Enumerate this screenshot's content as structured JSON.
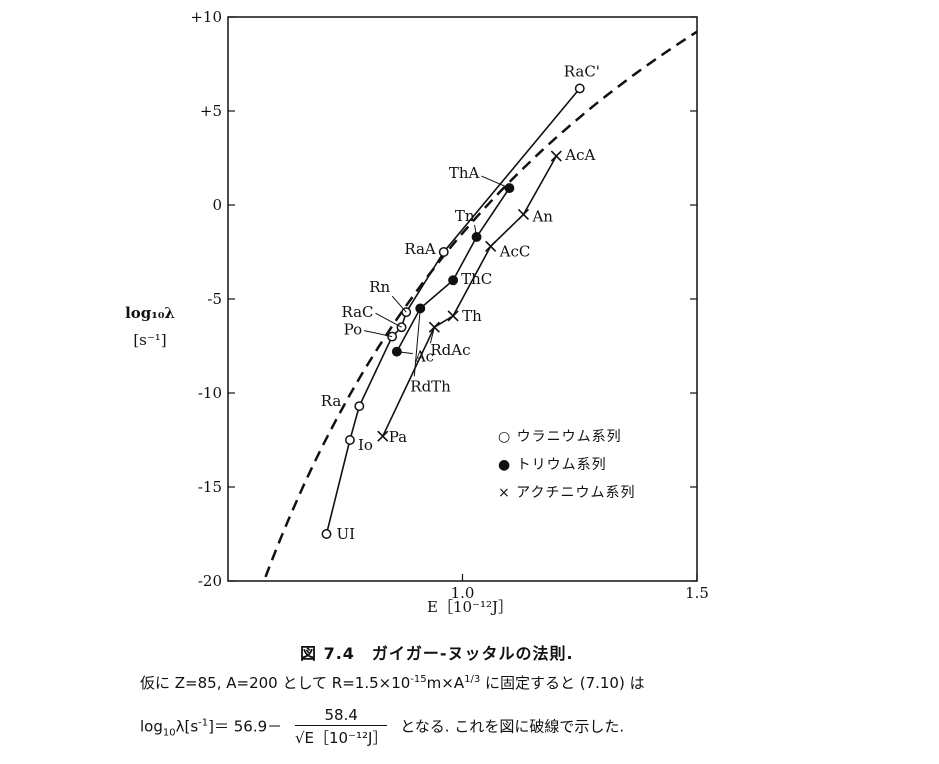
{
  "chart_data": {
    "type": "scatter",
    "xlim": [
      0.5,
      1.5
    ],
    "ylim": [
      -20,
      10
    ],
    "x_ticks": [
      1.0,
      1.5
    ],
    "x_tick_labels": [
      "1.0",
      "1.5"
    ],
    "y_ticks": [
      10,
      5,
      0,
      -5,
      -10,
      -15,
      -20
    ],
    "y_tick_labels": [
      "+10",
      "+5",
      "0",
      "-5",
      "-10",
      "-15",
      "-20"
    ],
    "xlabel": "E［10⁻¹²J］",
    "ylabel_line1": "log₁₀λ",
    "ylabel_line2": "[s⁻¹]",
    "legend": [
      "○ ウラニウム系列",
      "● トリウム系列",
      "× アクチニウム系列"
    ],
    "legend_position": "lower-right",
    "series": [
      {
        "name": "ウラニウム系列",
        "marker": "open-circle",
        "points": [
          {
            "label": "UI",
            "x": 0.71,
            "y": -17.5
          },
          {
            "label": "Io",
            "x": 0.76,
            "y": -12.5
          },
          {
            "label": "Ra",
            "x": 0.78,
            "y": -10.7
          },
          {
            "label": "Po",
            "x": 0.85,
            "y": -7.0
          },
          {
            "label": "RaC",
            "x": 0.87,
            "y": -6.5
          },
          {
            "label": "Rn",
            "x": 0.88,
            "y": -5.7
          },
          {
            "label": "RaA",
            "x": 0.96,
            "y": -2.5
          },
          {
            "label": "RaC'",
            "x": 1.25,
            "y": 6.2
          }
        ]
      },
      {
        "name": "トリウム系列",
        "marker": "filled-circle",
        "points": [
          {
            "label": "Ac",
            "x": 0.86,
            "y": -7.8
          },
          {
            "label": "RdTh",
            "x": 0.91,
            "y": -5.5
          },
          {
            "label": "ThC",
            "x": 0.98,
            "y": -4.0
          },
          {
            "label": "Tn",
            "x": 1.03,
            "y": -1.7
          },
          {
            "label": "ThA",
            "x": 1.1,
            "y": 0.9
          }
        ]
      },
      {
        "name": "アクチニウム系列",
        "marker": "cross",
        "points": [
          {
            "label": "Pa",
            "x": 0.83,
            "y": -12.3
          },
          {
            "label": "RdAc",
            "x": 0.94,
            "y": -6.5
          },
          {
            "label": "Th",
            "x": 0.98,
            "y": -5.9
          },
          {
            "label": "AcC",
            "x": 1.06,
            "y": -2.2
          },
          {
            "label": "An",
            "x": 1.13,
            "y": -0.5
          },
          {
            "label": "AcA",
            "x": 1.2,
            "y": 2.6
          }
        ]
      }
    ],
    "dashed_curve": {
      "formula_intercept": 56.9,
      "formula_coefficient": 58.4
    }
  },
  "caption": {
    "figure_title": "図 7.4　ガイガー-ヌッタルの法則.",
    "line1_a": "仮に Z=85,  A=200 として R=1.5×10",
    "line1_exp": "-15",
    "line1_b": "m×A",
    "line1_exp2": "1/3",
    "line1_c": "  に固定すると (7.10) は",
    "line2_a": "log",
    "line2_sub": "10",
    "line2_b": "λ[s",
    "line2_exp": "-1",
    "line2_c": "]＝  56.9－",
    "frac_num": "58.4",
    "frac_den": "√E［10⁻¹²J］",
    "line2_d": "  となる.  これを図に破線で示した."
  }
}
